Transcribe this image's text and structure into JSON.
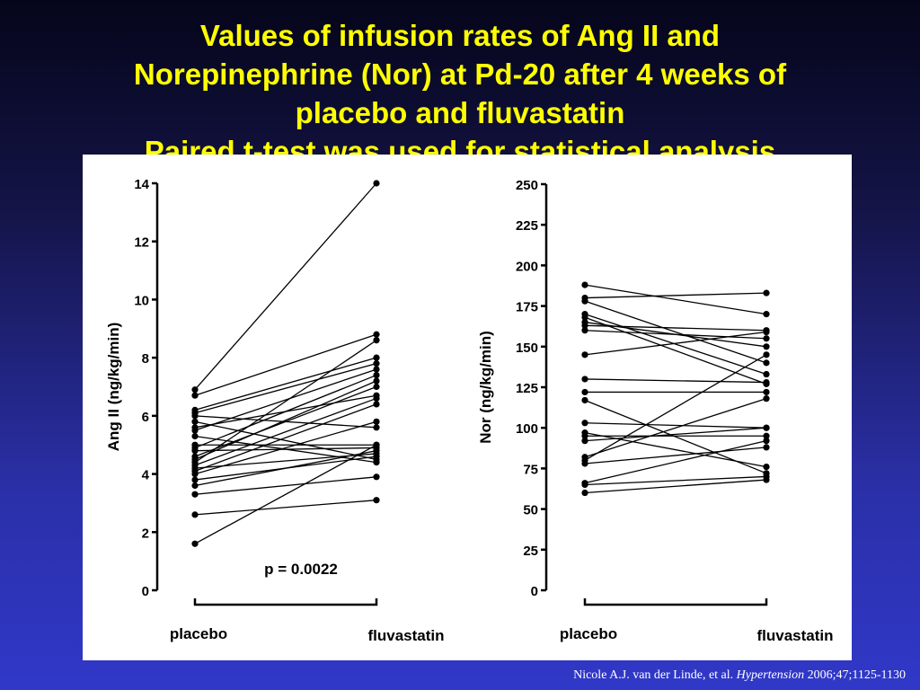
{
  "slide": {
    "title_lines": [
      "Values of infusion rates of Ang II and",
      "Norepinephrine (Nor) at Pd-20 after 4 weeks of",
      "placebo and fluvastatin",
      "Paired t-test was used for statistical analysis"
    ],
    "citation": {
      "authors": "Nicole A.J. van der Linde, et al.",
      "journal": "Hypertension",
      "ref": "2006;47;1125-1130"
    },
    "colors": {
      "title": "#ffff00",
      "background_top": "#05051a",
      "background_bottom": "#3038c8",
      "panel": "#ffffff",
      "ink": "#000000"
    }
  },
  "chart_data": [
    {
      "type": "line",
      "ylabel": "Ang II (ng/kg/min)",
      "categories": [
        "placebo",
        "fluvastatin"
      ],
      "ylim": [
        0,
        14
      ],
      "yticks": [
        "0",
        "2",
        "4",
        "6",
        "8",
        "10",
        "12",
        "14"
      ],
      "annotation": "p = 0.0022",
      "grid": false,
      "pairs": [
        [
          6.9,
          14.0
        ],
        [
          6.7,
          8.8
        ],
        [
          6.2,
          8.0
        ],
        [
          6.1,
          7.8
        ],
        [
          5.8,
          4.5
        ],
        [
          5.5,
          7.6
        ],
        [
          5.3,
          4.4
        ],
        [
          5.0,
          5.0
        ],
        [
          4.8,
          4.9
        ],
        [
          4.5,
          7.2
        ],
        [
          4.3,
          6.6
        ],
        [
          4.1,
          6.4
        ],
        [
          4.2,
          4.7
        ],
        [
          4.0,
          5.8
        ],
        [
          3.8,
          4.6
        ],
        [
          3.6,
          4.8
        ],
        [
          3.3,
          3.9
        ],
        [
          2.6,
          3.1
        ],
        [
          1.6,
          5.0
        ],
        [
          6.0,
          5.6
        ],
        [
          5.6,
          6.7
        ],
        [
          4.9,
          7.4
        ],
        [
          4.4,
          8.6
        ],
        [
          4.6,
          7.0
        ]
      ]
    },
    {
      "type": "line",
      "ylabel": "Nor (ng/kg/min)",
      "categories": [
        "placebo",
        "fluvastatin"
      ],
      "ylim": [
        0,
        250
      ],
      "yticks": [
        "0",
        "25",
        "50",
        "75",
        "100",
        "125",
        "150",
        "175",
        "200",
        "225",
        "250"
      ],
      "grid": false,
      "pairs": [
        [
          188,
          170
        ],
        [
          180,
          183
        ],
        [
          178,
          140
        ],
        [
          170,
          133
        ],
        [
          165,
          150
        ],
        [
          163,
          160
        ],
        [
          160,
          155
        ],
        [
          145,
          159
        ],
        [
          130,
          128
        ],
        [
          122,
          122
        ],
        [
          117,
          72
        ],
        [
          103,
          100
        ],
        [
          97,
          76
        ],
        [
          95,
          95
        ],
        [
          92,
          100
        ],
        [
          82,
          118
        ],
        [
          80,
          145
        ],
        [
          78,
          88
        ],
        [
          66,
          92
        ],
        [
          65,
          70
        ],
        [
          60,
          68
        ],
        [
          168,
          127
        ]
      ]
    }
  ]
}
